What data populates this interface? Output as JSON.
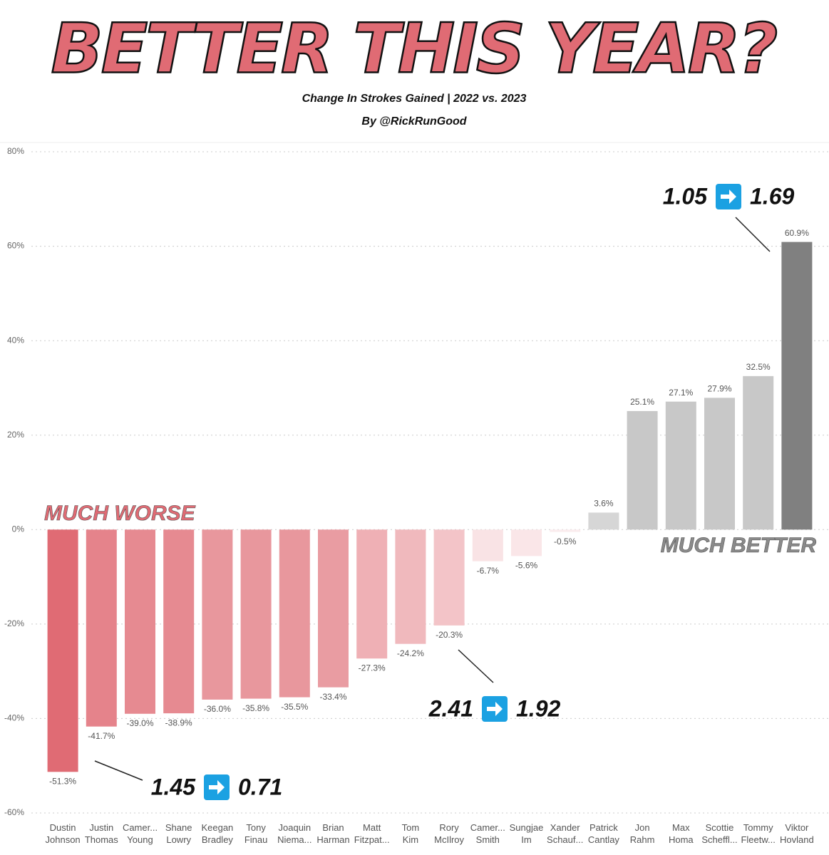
{
  "chart_data": {
    "type": "bar",
    "title": "BETTER THIS YEAR?",
    "subtitle": "Change In Strokes Gained | 2022 vs. 2023",
    "byline": "By @RickRunGood",
    "categories": [
      "Dustin Johnson",
      "Justin Thomas",
      "Camer... Young",
      "Shane Lowry",
      "Keegan Bradley",
      "Tony Finau",
      "Joaquin Niema...",
      "Brian Harman",
      "Matt Fitzpat...",
      "Tom Kim",
      "Rory McIlroy",
      "Camer... Smith",
      "Sungjae Im",
      "Xander Schauf...",
      "Patrick Cantlay",
      "Jon Rahm",
      "Max Homa",
      "Scottie Scheffl...",
      "Tommy Fleetw...",
      "Viktor Hovland"
    ],
    "values": [
      -51.3,
      -41.7,
      -39.0,
      -38.9,
      -36.0,
      -35.8,
      -35.5,
      -33.4,
      -27.3,
      -24.2,
      -20.3,
      -6.7,
      -5.6,
      -0.5,
      3.6,
      25.1,
      27.1,
      27.9,
      32.5,
      60.9
    ],
    "value_labels": [
      "-51.3%",
      "-41.7%",
      "-39.0%",
      "-38.9%",
      "-36.0%",
      "-35.8%",
      "-35.5%",
      "-33.4%",
      "-27.3%",
      "-24.2%",
      "-20.3%",
      "-6.7%",
      "-5.6%",
      "-0.5%",
      "3.6%",
      "25.1%",
      "27.1%",
      "27.9%",
      "32.5%",
      "60.9%"
    ],
    "colors": [
      "#e06b74",
      "#e5838b",
      "#e68a91",
      "#e68a91",
      "#e8979d",
      "#e8979d",
      "#e8979d",
      "#e99ca2",
      "#efb0b5",
      "#f0b9bd",
      "#f3c4c8",
      "#f9e3e5",
      "#fae6e8",
      "#fbecee",
      "#d6d6d6",
      "#c8c8c8",
      "#c8c8c8",
      "#c8c8c8",
      "#c8c8c8",
      "#808080"
    ],
    "ylim": [
      -60,
      80
    ],
    "yticks": [
      {
        "value": -60,
        "label": "-60%"
      },
      {
        "value": -40,
        "label": "-40%"
      },
      {
        "value": -20,
        "label": "-20%"
      },
      {
        "value": 0,
        "label": "0%"
      },
      {
        "value": 20,
        "label": "20%"
      },
      {
        "value": 40,
        "label": "40%"
      },
      {
        "value": 60,
        "label": "60%"
      },
      {
        "value": 80,
        "label": "80%"
      }
    ],
    "grid": true,
    "annotations": [
      {
        "text": "MUCH WORSE"
      },
      {
        "text": "MUCH BETTER"
      }
    ],
    "comparisons": [
      {
        "from": "1.45",
        "to": "0.71"
      },
      {
        "from": "2.41",
        "to": "1.92"
      },
      {
        "from": "1.05",
        "to": "1.69"
      }
    ]
  }
}
